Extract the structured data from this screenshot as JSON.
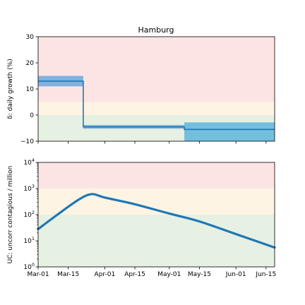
{
  "colors": {
    "red_zone": "#fde4e4",
    "yellow_zone": "#fdf4e4",
    "green_zone": "#e6f0e3",
    "line": "#1f77b4",
    "band_early": "#6fa8dc",
    "band_late": "#5fb5dd"
  },
  "chart_data": [
    {
      "type": "line",
      "title": "Hamburg",
      "ylabel": "δ: daily growth (%)",
      "ylim": [
        -10,
        30
      ],
      "yticks": [
        "30",
        "20",
        "10",
        "0",
        "−10"
      ],
      "zones": [
        {
          "from": 5,
          "to": 30,
          "color": "red_zone"
        },
        {
          "from": 0,
          "to": 5,
          "color": "yellow_zone"
        },
        {
          "from": -10,
          "to": 0,
          "color": "green_zone"
        }
      ],
      "segments": [
        {
          "start": "2020-03-01",
          "end": "2020-03-22",
          "value": 13,
          "low": 11,
          "high": 15,
          "band_color": "band_early"
        },
        {
          "start": "2020-03-22",
          "end": "2020-05-08",
          "value": -4.5,
          "low": -5.2,
          "high": -3.8,
          "band_color": "band_early"
        },
        {
          "start": "2020-05-08",
          "end": "2020-06-19",
          "value": -5.5,
          "low": -10,
          "high": -2.8,
          "band_color": "band_late"
        }
      ]
    },
    {
      "type": "line",
      "title": "",
      "ylabel": "UC: uncorr contagious / million",
      "yscale": "log",
      "ylim": [
        1,
        10000
      ],
      "yticks": [
        {
          "base": "10",
          "exp": "4"
        },
        {
          "base": "10",
          "exp": "3"
        },
        {
          "base": "10",
          "exp": "2"
        },
        {
          "base": "10",
          "exp": "1"
        },
        {
          "base": "10",
          "exp": "0"
        }
      ],
      "zones": [
        {
          "from": 1000,
          "to": 10000,
          "color": "red_zone"
        },
        {
          "from": 100,
          "to": 1000,
          "color": "yellow_zone"
        },
        {
          "from": 1,
          "to": 100,
          "color": "green_zone"
        }
      ],
      "x": [
        "2020-03-01",
        "2020-03-10",
        "2020-03-20",
        "2020-03-26",
        "2020-04-01",
        "2020-04-15",
        "2020-05-01",
        "2020-05-15",
        "2020-06-01",
        "2020-06-19"
      ],
      "values": [
        28,
        100,
        380,
        610,
        450,
        250,
        110,
        55,
        18,
        5.5
      ],
      "xticks": [
        "Mar-01",
        "Mar-15",
        "Apr-01",
        "Apr-15",
        "May-01",
        "May-15",
        "Jun-01",
        "Jun-15"
      ],
      "xtick_dates": [
        "2020-03-01",
        "2020-03-15",
        "2020-04-01",
        "2020-04-15",
        "2020-05-01",
        "2020-05-15",
        "2020-06-01",
        "2020-06-15"
      ],
      "xlim": [
        "2020-03-01",
        "2020-06-19"
      ]
    }
  ]
}
